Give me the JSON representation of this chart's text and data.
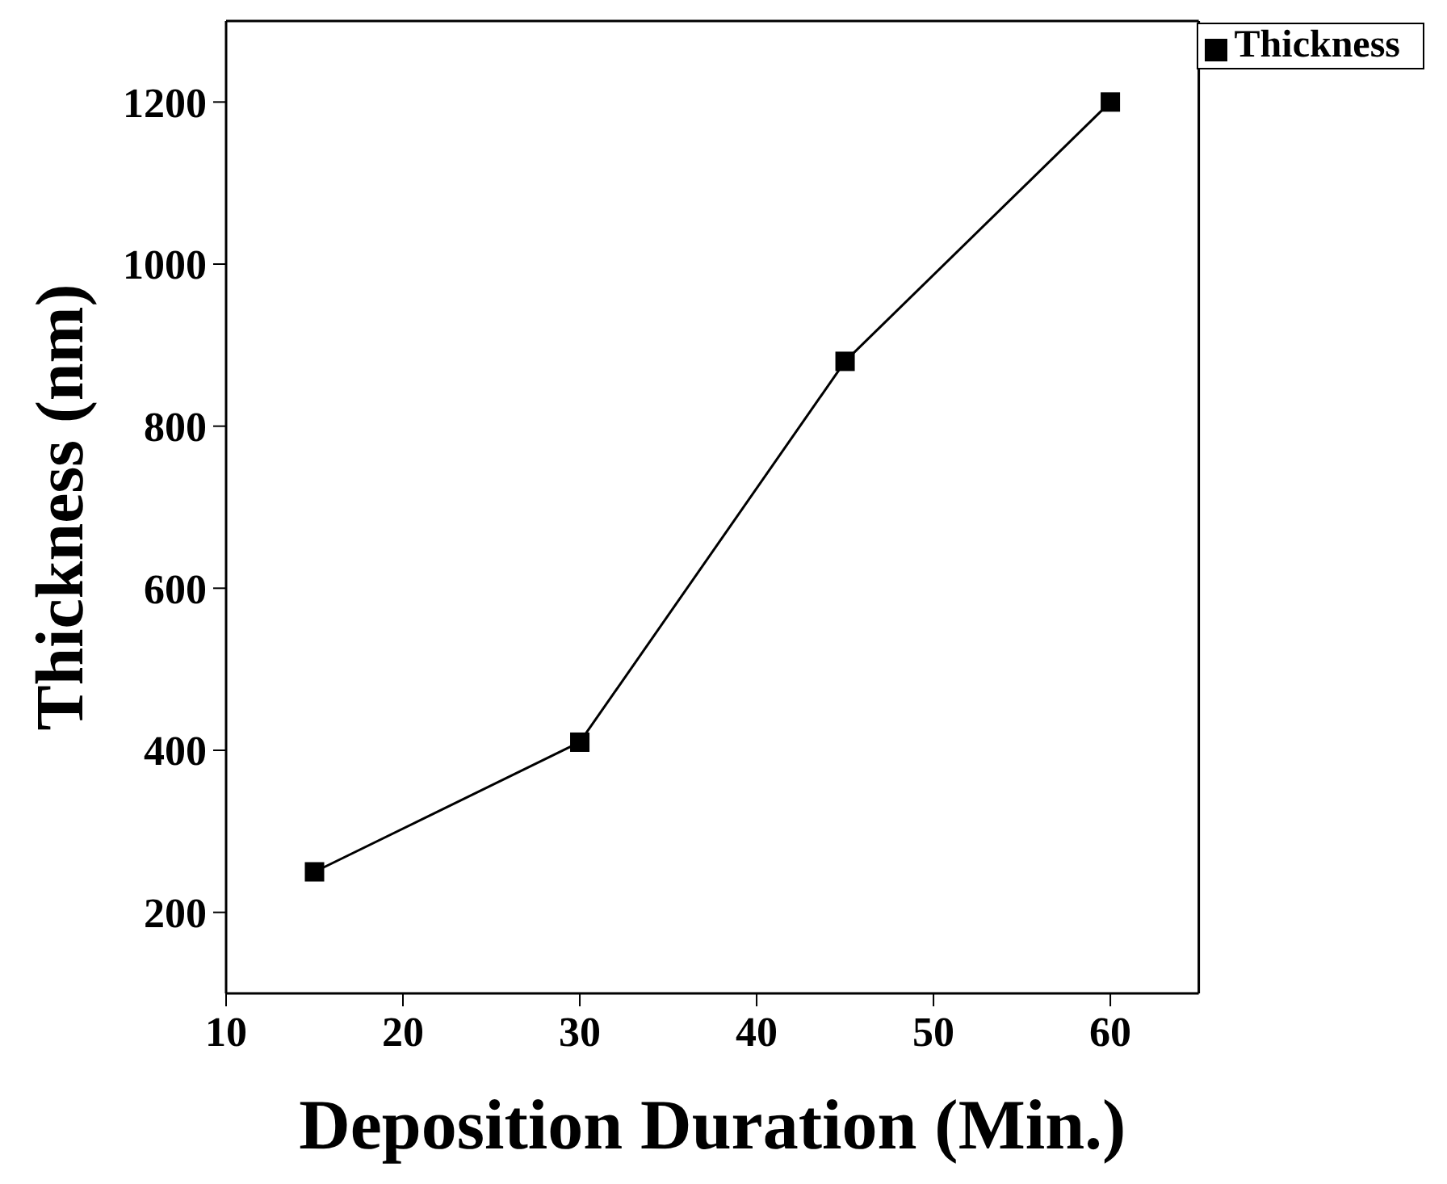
{
  "chart_data": {
    "type": "line",
    "xlabel": "Deposition Duration (Min.)",
    "ylabel": "Thickness (nm)",
    "x": [
      15,
      30,
      45,
      60
    ],
    "series": [
      {
        "name": "Thickness",
        "color": "#000000",
        "values": [
          250,
          410,
          880,
          1200
        ]
      }
    ],
    "xlim": [
      10,
      65
    ],
    "xticks": [
      10,
      20,
      30,
      40,
      50,
      60
    ],
    "ylim": [
      100,
      1300
    ],
    "yticks": [
      200,
      400,
      600,
      800,
      1000,
      1200
    ],
    "grid": false,
    "legend": "top right",
    "marker": "square",
    "line_style": "solid"
  }
}
